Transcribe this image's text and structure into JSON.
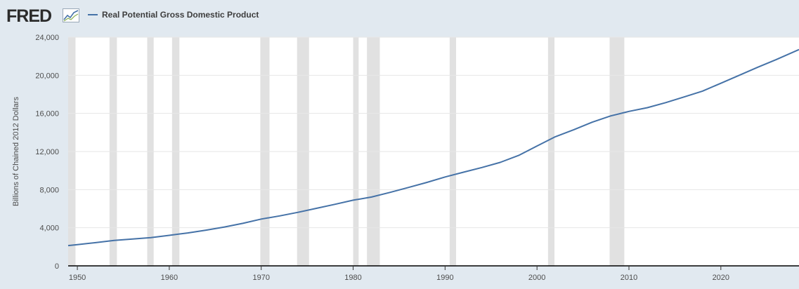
{
  "header": {
    "logo_text": "FRED",
    "logo_icon": "line-chart-icon"
  },
  "colors": {
    "background": "#e1e9f0",
    "plot_background": "#ffffff",
    "series": "#4572a7",
    "recession": "#e1e1e1"
  },
  "chart_data": {
    "type": "line",
    "ylabel": "Billions of Chained 2012 Dollars",
    "xlabel": "",
    "xlim": [
      1949,
      2028.5
    ],
    "ylim": [
      0,
      24000
    ],
    "yticks": [
      0,
      4000,
      8000,
      12000,
      16000,
      20000,
      24000
    ],
    "ytick_labels": [
      "0",
      "4,000",
      "8,000",
      "12,000",
      "16,000",
      "20,000",
      "24,000"
    ],
    "xticks": [
      1950,
      1960,
      1970,
      1980,
      1990,
      2000,
      2010,
      2020
    ],
    "xtick_labels": [
      "1950",
      "1960",
      "1970",
      "1980",
      "1990",
      "2000",
      "2010",
      "2020"
    ],
    "grid": "horizontal",
    "legend_position": "top-left",
    "recessions": [
      [
        1949.0,
        1949.8
      ],
      [
        1953.5,
        1954.3
      ],
      [
        1957.6,
        1958.3
      ],
      [
        1960.3,
        1961.1
      ],
      [
        1969.9,
        1970.9
      ],
      [
        1973.9,
        1975.2
      ],
      [
        1980.0,
        1980.6
      ],
      [
        1981.5,
        1982.9
      ],
      [
        1990.5,
        1991.2
      ],
      [
        2001.2,
        2001.9
      ],
      [
        2007.9,
        2009.5
      ]
    ],
    "series": [
      {
        "name": "Real Potential Gross Domestic Product",
        "x": [
          1949,
          1950,
          1952,
          1954,
          1956,
          1958,
          1960,
          1962,
          1964,
          1966,
          1968,
          1970,
          1972,
          1974,
          1976,
          1978,
          1980,
          1982,
          1984,
          1986,
          1988,
          1990,
          1992,
          1994,
          1996,
          1998,
          2000,
          2002,
          2004,
          2006,
          2008,
          2010,
          2012,
          2014,
          2016,
          2018,
          2020,
          2022,
          2024,
          2026,
          2028.5
        ],
        "values": [
          2130,
          2230,
          2440,
          2670,
          2810,
          2970,
          3200,
          3450,
          3750,
          4080,
          4460,
          4910,
          5240,
          5620,
          6040,
          6460,
          6890,
          7220,
          7710,
          8220,
          8750,
          9330,
          9830,
          10320,
          10860,
          11590,
          12580,
          13550,
          14290,
          15080,
          15730,
          16210,
          16600,
          17130,
          17730,
          18340,
          19160,
          20000,
          20840,
          21640,
          22700
        ]
      }
    ]
  }
}
